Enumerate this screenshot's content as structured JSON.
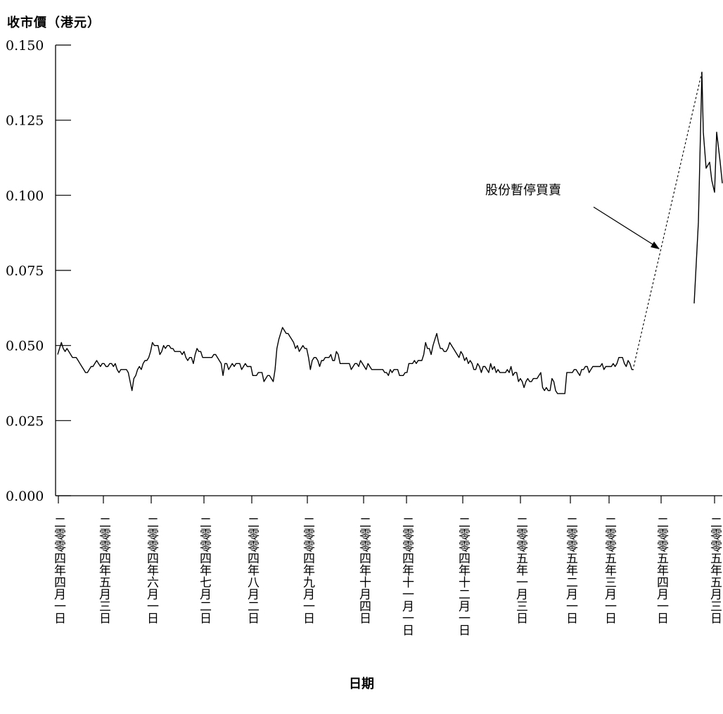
{
  "chart_data": {
    "type": "line",
    "title": "",
    "ylabel": "收市價（港元）",
    "xlabel": "日期",
    "ylim": [
      0,
      0.15
    ],
    "yticks": [
      "0.000",
      "0.025",
      "0.050",
      "0.075",
      "0.100",
      "0.125",
      "0.150"
    ],
    "xticks": [
      "二零零四年四月一日",
      "二零零四年五月三日",
      "二零零四年六月一日",
      "二零零四年七月二日",
      "二零零四年八月二日",
      "二零零四年九月一日",
      "二零零四年十月四日",
      "二零零四年十一月一日",
      "二零零四年十二月一日",
      "二零零五年一月三日",
      "二零零五年二月一日",
      "二零零五年三月一日",
      "二零零五年四月一日",
      "二零零五年五月三日"
    ],
    "annotation": "股份暫停買賣",
    "series": [
      {
        "values": [
          0.047,
          0.049,
          0.051,
          0.049,
          0.048,
          0.049,
          0.048,
          0.047,
          0.046,
          0.046,
          0.046,
          0.045,
          0.044,
          0.043,
          0.042,
          0.041,
          0.041,
          0.042,
          0.043,
          0.043,
          0.044,
          0.045,
          0.044,
          0.043,
          0.044,
          0.044,
          0.043,
          0.043,
          0.044,
          0.044,
          0.043,
          0.044,
          0.042,
          0.041,
          0.042,
          0.042,
          0.042,
          0.042,
          0.041,
          0.038,
          0.035,
          0.039,
          0.04,
          0.042,
          0.043,
          0.042,
          0.044,
          0.045,
          0.045,
          0.046,
          0.048,
          0.051,
          0.05,
          0.05,
          0.05,
          0.047,
          0.048,
          0.05,
          0.049,
          0.05,
          0.05,
          0.049,
          0.049,
          0.048,
          0.048,
          0.048,
          0.048,
          0.047,
          0.048,
          0.046,
          0.045,
          0.046,
          0.046,
          0.044,
          0.047,
          0.049,
          0.048,
          0.048,
          0.046,
          0.046,
          0.046,
          0.046,
          0.046,
          0.046,
          0.047,
          0.047,
          0.046,
          0.045,
          0.044,
          0.04,
          0.044,
          0.044,
          0.042,
          0.043,
          0.044,
          0.043,
          0.044,
          0.044,
          0.044,
          0.042,
          0.043,
          0.044,
          0.043,
          0.043,
          0.043,
          0.04,
          0.04,
          0.04,
          0.041,
          0.041,
          0.041,
          0.038,
          0.039,
          0.04,
          0.04,
          0.039,
          0.038,
          0.042,
          0.049,
          0.052,
          0.054,
          0.056,
          0.055,
          0.054,
          0.054,
          0.053,
          0.052,
          0.051,
          0.049,
          0.05,
          0.048,
          0.049,
          0.05,
          0.049,
          0.049,
          0.046,
          0.042,
          0.045,
          0.046,
          0.046,
          0.045,
          0.043,
          0.045,
          0.045,
          0.046,
          0.046,
          0.046,
          0.047,
          0.045,
          0.045,
          0.048,
          0.047,
          0.044,
          0.044,
          0.044,
          0.044,
          0.044,
          0.044,
          0.042,
          0.043,
          0.044,
          0.044,
          0.043,
          0.045,
          0.044,
          0.043,
          0.042,
          0.044,
          0.043,
          0.042,
          0.042,
          0.042,
          0.042,
          0.042,
          0.042,
          0.042,
          0.041,
          0.041,
          0.04,
          0.042,
          0.041,
          0.042,
          0.042,
          0.042,
          0.04,
          0.04,
          0.04,
          0.041,
          0.041,
          0.044,
          0.044,
          0.044,
          0.045,
          0.044,
          0.045,
          0.045,
          0.045,
          0.047,
          0.051,
          0.049,
          0.049,
          0.047,
          0.05,
          0.052,
          0.054,
          0.051,
          0.049,
          0.049,
          0.048,
          0.048,
          0.049,
          0.051,
          0.05,
          0.049,
          0.048,
          0.047,
          0.046,
          0.048,
          0.047,
          0.045,
          0.046,
          0.044,
          0.045,
          0.044,
          0.042,
          0.042,
          0.044,
          0.043,
          0.041,
          0.043,
          0.043,
          0.042,
          0.041,
          0.044,
          0.042,
          0.043,
          0.041,
          0.042,
          0.041,
          0.041,
          0.041,
          0.041,
          0.042,
          0.041,
          0.043,
          0.04,
          0.041,
          0.041,
          0.038,
          0.039,
          0.038,
          0.036,
          0.038,
          0.039,
          0.038,
          0.038,
          0.039,
          0.039,
          0.039,
          0.04,
          0.041,
          0.036,
          0.035,
          0.036,
          0.035,
          0.035,
          0.039,
          0.038,
          0.035,
          0.034,
          0.034,
          0.034,
          0.034,
          0.034,
          0.041,
          0.041,
          0.041,
          0.041,
          0.042,
          0.042,
          0.041,
          0.04,
          0.042,
          0.042,
          0.043,
          0.043,
          0.041,
          0.042,
          0.043,
          0.043,
          0.043,
          0.043,
          0.043,
          0.044,
          0.042,
          0.043,
          0.043,
          0.043,
          0.043,
          0.044,
          0.043,
          0.044,
          0.046,
          0.046,
          0.046,
          0.044,
          0.043,
          0.045,
          0.044,
          0.042,
          0.042
        ]
      },
      {
        "values": [
          0.064,
          0.091,
          0.141,
          0.121,
          0.109,
          0.111,
          0.105,
          0.101,
          0.121,
          0.111,
          0.104
        ]
      }
    ],
    "suspension_gap": {
      "from": 0.043,
      "to": 0.141,
      "style": "dashed"
    }
  }
}
